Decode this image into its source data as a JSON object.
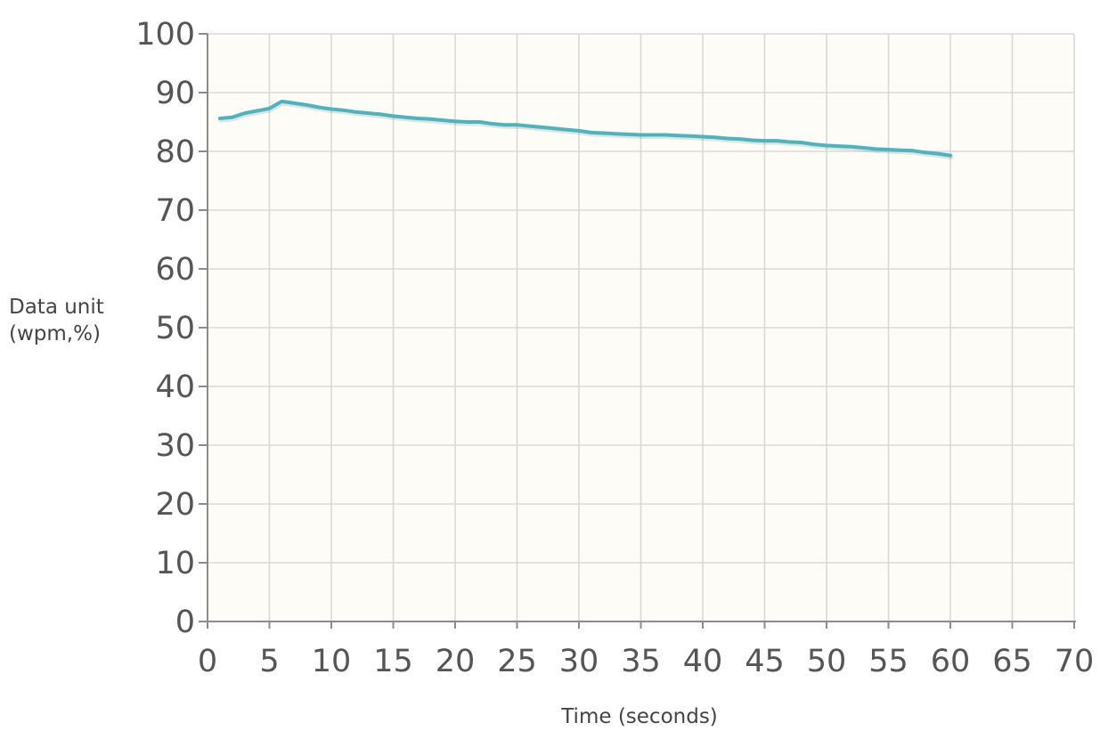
{
  "chart_data": {
    "type": "line",
    "title": "",
    "xlabel": "Time (seconds)",
    "ylabel": [
      "Data unit",
      "(wpm,%)"
    ],
    "xlim": [
      0,
      70
    ],
    "ylim": [
      0,
      100
    ],
    "x_ticks": [
      0,
      5,
      10,
      15,
      20,
      25,
      30,
      35,
      40,
      45,
      50,
      55,
      60,
      65,
      70
    ],
    "y_ticks": [
      0,
      10,
      20,
      30,
      40,
      50,
      60,
      70,
      80,
      90,
      100
    ],
    "grid": true,
    "legend": "none",
    "colors": {
      "plot_background": "#fdfcf6",
      "grid": "#d9d9d9",
      "axis": "#8c8c8c",
      "line": "#4ab5c0"
    },
    "series": [
      {
        "x": [
          1,
          2,
          3,
          4,
          5,
          6,
          7,
          8,
          9,
          10,
          11,
          12,
          13,
          14,
          15,
          16,
          17,
          18,
          19,
          20,
          21,
          22,
          23,
          24,
          25,
          26,
          27,
          28,
          29,
          30,
          31,
          32,
          33,
          34,
          35,
          36,
          37,
          38,
          39,
          40,
          41,
          42,
          43,
          44,
          45,
          46,
          47,
          48,
          49,
          50,
          51,
          52,
          53,
          54,
          55,
          56,
          57,
          58,
          59,
          60
        ],
        "y": [
          85.6,
          85.8,
          86.5,
          86.9,
          87.3,
          88.5,
          88.2,
          87.9,
          87.5,
          87.2,
          87.0,
          86.7,
          86.5,
          86.3,
          86.0,
          85.8,
          85.6,
          85.5,
          85.3,
          85.1,
          85.0,
          85.0,
          84.7,
          84.5,
          84.5,
          84.3,
          84.1,
          83.9,
          83.7,
          83.5,
          83.2,
          83.1,
          83.0,
          82.9,
          82.8,
          82.8,
          82.8,
          82.7,
          82.6,
          82.5,
          82.4,
          82.2,
          82.1,
          81.9,
          81.8,
          81.8,
          81.6,
          81.5,
          81.2,
          81.0,
          80.9,
          80.8,
          80.6,
          80.4,
          80.3,
          80.2,
          80.1,
          79.8,
          79.6,
          79.3
        ]
      }
    ]
  }
}
